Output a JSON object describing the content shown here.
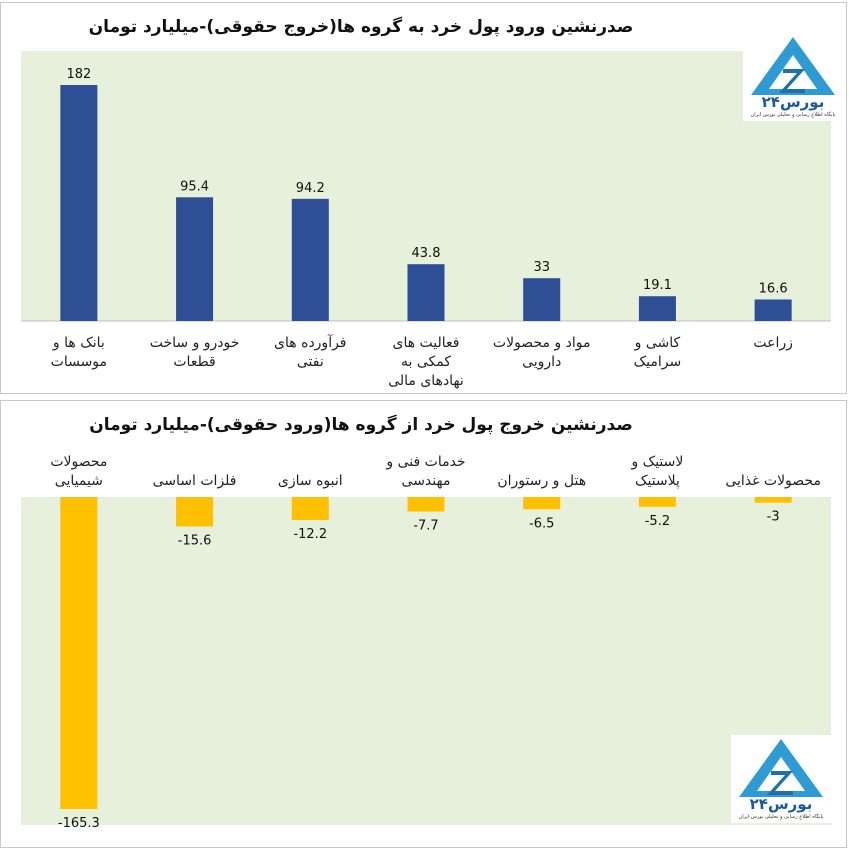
{
  "chart_data": [
    {
      "type": "bar",
      "title": "صدرنشین ورود پول خرد به گروه ها(خروج حقوقی)-میلیارد تومان",
      "categories": [
        [
          "بانک ها و",
          "موسسات"
        ],
        [
          "خودرو و ساخت",
          "قطعات"
        ],
        [
          "فرآورده های",
          "نفتی"
        ],
        [
          "فعالیت های",
          "کمکی به",
          "نهادهای مالی"
        ],
        [
          "مواد و محصولات",
          "دارویی"
        ],
        [
          "کاشی و",
          "سرامیک"
        ],
        [
          "زراعت"
        ]
      ],
      "values": [
        182,
        95.4,
        94.2,
        43.8,
        33,
        19.1,
        16.6
      ],
      "value_labels": [
        "182",
        "95.4",
        "94.2",
        "43.8",
        "33",
        "19.1",
        "16.6"
      ],
      "ylim": [
        0,
        182
      ],
      "bar_color": "#2e4f96",
      "plot_bg": "#e6f0da",
      "grid": false,
      "legend": "none"
    },
    {
      "type": "bar",
      "title": "صدرنشین خروج پول خرد از گروه ها(ورود حقوقی)-میلیارد تومان",
      "categories": [
        [
          "محصولات",
          "شیمیایی"
        ],
        [
          "فلزات اساسی"
        ],
        [
          "انبوه سازی"
        ],
        [
          "خدمات فنی و",
          "مهندسی"
        ],
        [
          "هتل و رستوران"
        ],
        [
          "لاستیک و",
          "پلاستیک"
        ],
        [
          "محصولات غذایی"
        ]
      ],
      "values": [
        -165.3,
        -15.6,
        -12.2,
        -7.7,
        -6.5,
        -5.2,
        -3
      ],
      "value_labels": [
        "-165.3",
        "-15.6",
        "-12.2",
        "-7.7",
        "-6.5",
        "-5.2",
        "-3"
      ],
      "ylim": [
        -165.3,
        0
      ],
      "bar_color": "#ffc000",
      "plot_bg": "#e6f0da",
      "grid": false,
      "legend": "none"
    }
  ],
  "logo": {
    "name": "بورس۲۴",
    "tagline": "پایگاه اطلاع رسانی و تحلیلی بورس ایران",
    "colors": [
      "#2e9bd3",
      "#1f6fa8"
    ]
  }
}
